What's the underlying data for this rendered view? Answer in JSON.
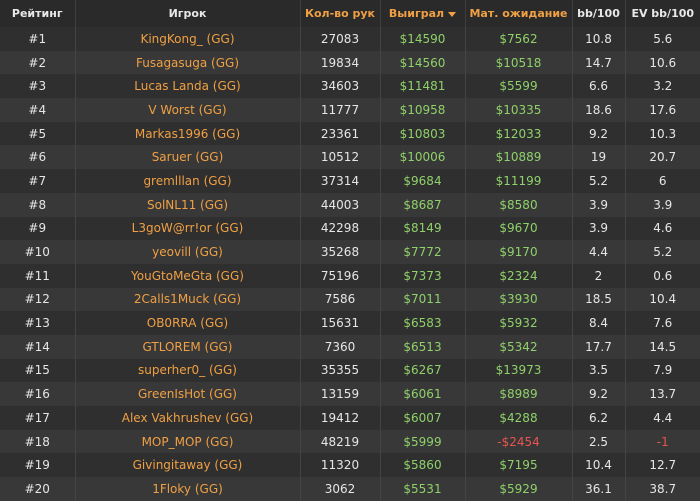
{
  "table": {
    "header": [
      "Рейтинг",
      "Игрок",
      "Кол-во рук",
      "Выиграл",
      "Мат. ожидание",
      "bb/100",
      "EV bb/100"
    ],
    "rows": [
      [
        "#1",
        "KingKong_ (GG)",
        "27083",
        "$14590",
        "$7562",
        "10.8",
        "5.6"
      ],
      [
        "#2",
        "Fusagasuga (GG)",
        "19834",
        "$14560",
        "$10518",
        "14.7",
        "10.6"
      ],
      [
        "#3",
        "Lucas Landa (GG)",
        "34603",
        "$11481",
        "$5599",
        "6.6",
        "3.2"
      ],
      [
        "#4",
        "V Worst (GG)",
        "11777",
        "$10958",
        "$10335",
        "18.6",
        "17.6"
      ],
      [
        "#5",
        "Markas1996 (GG)",
        "23361",
        "$10803",
        "$12033",
        "9.2",
        "10.3"
      ],
      [
        "#6",
        "Saruer (GG)",
        "10512",
        "$10006",
        "$10889",
        "19",
        "20.7"
      ],
      [
        "#7",
        "gremlllan (GG)",
        "37314",
        "$9684",
        "$11199",
        "5.2",
        "6"
      ],
      [
        "#8",
        "SolNL11 (GG)",
        "44003",
        "$8687",
        "$8580",
        "3.9",
        "3.9"
      ],
      [
        "#9",
        "L3goW@rr!or (GG)",
        "42298",
        "$8149",
        "$9670",
        "3.9",
        "4.6"
      ],
      [
        "#10",
        "yeovill (GG)",
        "35268",
        "$7772",
        "$9170",
        "4.4",
        "5.2"
      ],
      [
        "#11",
        "YouGtoMeGta (GG)",
        "75196",
        "$7373",
        "$2324",
        "2",
        "0.6"
      ],
      [
        "#12",
        "2Calls1Muck (GG)",
        "7586",
        "$7011",
        "$3930",
        "18.5",
        "10.4"
      ],
      [
        "#13",
        "OB0RRA (GG)",
        "15631",
        "$6583",
        "$5932",
        "8.4",
        "7.6"
      ],
      [
        "#14",
        "GTLOREM (GG)",
        "7360",
        "$6513",
        "$5342",
        "17.7",
        "14.5"
      ],
      [
        "#15",
        "superher0_ (GG)",
        "35355",
        "$6267",
        "$13973",
        "3.5",
        "7.9"
      ],
      [
        "#16",
        "GreenIsHot (GG)",
        "13159",
        "$6061",
        "$8989",
        "9.2",
        "13.7"
      ],
      [
        "#17",
        "Alex Vakhrushev (GG)",
        "19412",
        "$6007",
        "$4288",
        "6.2",
        "4.4"
      ],
      [
        "#18",
        "MOP_MOP (GG)",
        "48219",
        "$5999",
        "-$2454",
        "2.5",
        "-1"
      ],
      [
        "#19",
        "Givingitaway (GG)",
        "11320",
        "$5860",
        "$7195",
        "10.4",
        "12.7"
      ],
      [
        "#20",
        "1Floky (GG)",
        "3062",
        "$5531",
        "$5929",
        "36.1",
        "38.7"
      ]
    ]
  }
}
